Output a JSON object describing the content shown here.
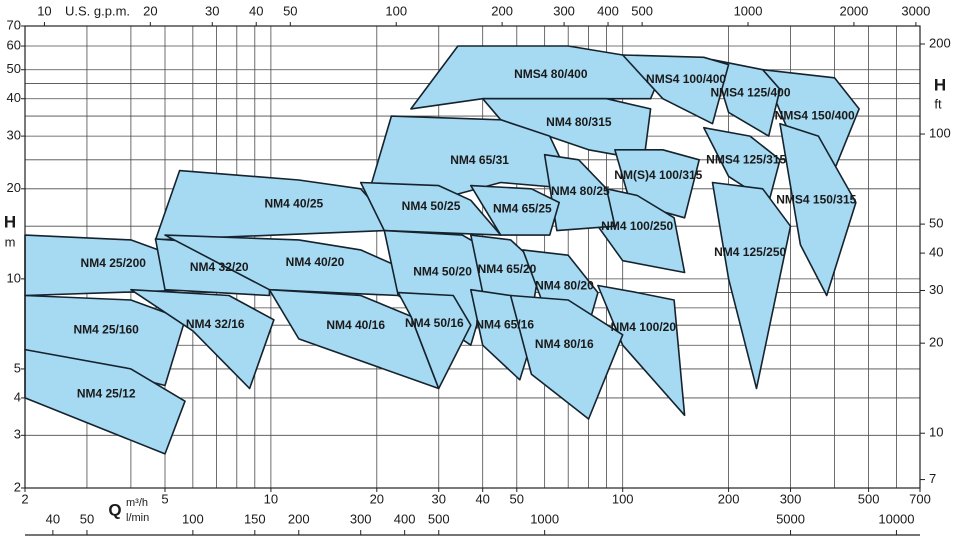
{
  "chart_data": {
    "type": "region-map",
    "x_label": "Q",
    "x_unit": "m³/h",
    "x2_unit": "l/min",
    "top_unit": "U.S. g.p.m.",
    "y_label": "H",
    "y_unit": "m",
    "y2_label": "H",
    "y2_unit": "ft",
    "log_x": true,
    "log_y": true,
    "xlim": [
      2,
      700
    ],
    "ylim": [
      2,
      70
    ],
    "xticks": [
      2,
      5,
      10,
      20,
      30,
      40,
      50,
      100,
      200,
      300,
      500,
      700
    ],
    "yticks": [
      2,
      3,
      4,
      5,
      10,
      20,
      30,
      40,
      50,
      60,
      70
    ],
    "toplim": [
      8.806,
      3082
    ],
    "topticks": [
      10,
      20,
      30,
      40,
      50,
      100,
      200,
      300,
      400,
      500,
      1000,
      2000,
      3000
    ],
    "x2lim": [
      33.33,
      11667
    ],
    "x2ticks": [
      40,
      50,
      100,
      150,
      200,
      300,
      400,
      500,
      1000,
      5000,
      10000
    ],
    "y2lim": [
      6.56,
      229.7
    ],
    "y2ticks": [
      7,
      10,
      20,
      30,
      40,
      50,
      100,
      200
    ],
    "xgrid": [
      2,
      3,
      4,
      5,
      6,
      7,
      8,
      9,
      10,
      20,
      30,
      40,
      50,
      60,
      70,
      80,
      90,
      100,
      200,
      300,
      400,
      500,
      600,
      700
    ],
    "ygrid": [
      2,
      3,
      4,
      5,
      6,
      7,
      8,
      9,
      10,
      15,
      20,
      25,
      30,
      35,
      40,
      45,
      50,
      60,
      70
    ],
    "region_color": "#a6d9f2",
    "edge_color": "#15232e",
    "regions": [
      {
        "name": "NMS4 80/400",
        "points": [
          [
            25,
            37
          ],
          [
            34,
            60
          ],
          [
            70,
            60
          ],
          [
            100,
            56
          ],
          [
            130,
            50
          ],
          [
            120,
            40
          ],
          [
            40,
            40
          ]
        ]
      },
      {
        "name": "NM4 80/315",
        "points": [
          [
            40,
            40
          ],
          [
            90,
            40
          ],
          [
            120,
            37
          ],
          [
            115,
            25
          ],
          [
            80,
            27
          ],
          [
            45,
            34
          ]
        ]
      },
      {
        "name": "NM4 65/31",
        "points": [
          [
            18,
            15.7
          ],
          [
            22,
            35
          ],
          [
            45,
            34
          ],
          [
            62,
            30
          ],
          [
            73,
            20
          ],
          [
            45,
            21
          ]
        ]
      },
      {
        "name": "NMS4 150/400",
        "points": [
          [
            250,
            50
          ],
          [
            400,
            47
          ],
          [
            470,
            37
          ],
          [
            380,
            20
          ],
          [
            300,
            30
          ]
        ]
      },
      {
        "name": "NMS4 125/400",
        "points": [
          [
            180,
            54
          ],
          [
            250,
            50
          ],
          [
            280,
            43
          ],
          [
            260,
            30
          ],
          [
            200,
            36
          ]
        ]
      },
      {
        "name": "NMS4 100/400",
        "points": [
          [
            100,
            56
          ],
          [
            170,
            55
          ],
          [
            200,
            52
          ],
          [
            180,
            33
          ],
          [
            130,
            40
          ]
        ]
      },
      {
        "name": "NMS4 150/315",
        "points": [
          [
            280,
            33
          ],
          [
            360,
            30
          ],
          [
            460,
            18
          ],
          [
            380,
            8.8
          ],
          [
            320,
            13
          ]
        ]
      },
      {
        "name": "NMS4 125/315",
        "points": [
          [
            170,
            32
          ],
          [
            230,
            30
          ],
          [
            280,
            25
          ],
          [
            260,
            18
          ],
          [
            200,
            22
          ]
        ]
      },
      {
        "name": "NM4 125/250",
        "points": [
          [
            180,
            21
          ],
          [
            250,
            20
          ],
          [
            300,
            15
          ],
          [
            240,
            4.3
          ],
          [
            200,
            10
          ]
        ]
      },
      {
        "name": "NM(S)4 100/315",
        "points": [
          [
            95,
            27
          ],
          [
            130,
            27
          ],
          [
            165,
            25
          ],
          [
            150,
            16
          ],
          [
            105,
            18
          ]
        ]
      },
      {
        "name": "NM4 100/250",
        "points": [
          [
            90,
            20
          ],
          [
            110,
            19
          ],
          [
            140,
            16
          ],
          [
            150,
            10.5
          ],
          [
            100,
            11.5
          ],
          [
            85,
            15
          ]
        ]
      },
      {
        "name": "NM4 100/20",
        "points": [
          [
            85,
            9.5
          ],
          [
            110,
            9
          ],
          [
            140,
            8.5
          ],
          [
            150,
            3.5
          ],
          [
            100,
            6
          ]
        ]
      },
      {
        "name": "NM4 80/25",
        "points": [
          [
            60,
            26
          ],
          [
            75,
            25
          ],
          [
            90,
            20
          ],
          [
            95,
            15
          ],
          [
            65,
            14.5
          ]
        ]
      },
      {
        "name": "NM4 40/25",
        "points": [
          [
            4.7,
            13.5
          ],
          [
            5.5,
            23
          ],
          [
            12,
            21.4
          ],
          [
            18,
            20
          ],
          [
            21,
            16.3
          ],
          [
            21,
            14.5
          ]
        ]
      },
      {
        "name": "NM4 50/25",
        "points": [
          [
            18,
            21
          ],
          [
            30,
            20.5
          ],
          [
            37,
            18.3
          ],
          [
            45,
            14
          ],
          [
            21,
            14.5
          ]
        ]
      },
      {
        "name": "NM4 65/25",
        "points": [
          [
            37,
            20.5
          ],
          [
            55,
            20
          ],
          [
            66,
            18
          ],
          [
            62,
            14
          ],
          [
            45,
            14
          ]
        ]
      },
      {
        "name": "NM4 25/200",
        "points": [
          [
            2,
            14
          ],
          [
            4,
            13.5
          ],
          [
            5.7,
            11.6
          ],
          [
            6.3,
            9.2
          ],
          [
            2,
            8.8
          ]
        ]
      },
      {
        "name": "NM4 32/20",
        "points": [
          [
            4.7,
            13.6
          ],
          [
            8,
            13
          ],
          [
            9.9,
            10.7
          ],
          [
            9.9,
            8.8
          ],
          [
            5,
            9.2
          ]
        ]
      },
      {
        "name": "NM4 40/20",
        "points": [
          [
            5,
            14
          ],
          [
            12,
            13.5
          ],
          [
            18,
            12.5
          ],
          [
            23,
            11
          ],
          [
            23,
            8.8
          ],
          [
            9.9,
            9.2
          ]
        ]
      },
      {
        "name": "NM4 50/20",
        "points": [
          [
            21,
            14.5
          ],
          [
            35,
            14
          ],
          [
            44,
            12
          ],
          [
            37,
            6
          ],
          [
            23,
            8.8
          ]
        ]
      },
      {
        "name": "NM4 65/20",
        "points": [
          [
            37,
            14
          ],
          [
            48,
            13.5
          ],
          [
            58,
            11
          ],
          [
            55,
            7.5
          ],
          [
            40,
            9
          ]
        ]
      },
      {
        "name": "NM4 80/20",
        "points": [
          [
            52,
            12.5
          ],
          [
            70,
            12
          ],
          [
            85,
            9
          ],
          [
            80,
            7
          ],
          [
            60,
            8
          ]
        ]
      },
      {
        "name": "NM4 25/160",
        "points": [
          [
            2,
            8.8
          ],
          [
            4,
            8.5
          ],
          [
            5.7,
            7.3
          ],
          [
            5,
            4.4
          ],
          [
            2,
            5.8
          ]
        ]
      },
      {
        "name": "NM4 32/16",
        "points": [
          [
            4,
            9.2
          ],
          [
            7.6,
            8.8
          ],
          [
            10.2,
            7.3
          ],
          [
            8.7,
            4.3
          ],
          [
            6,
            6.7
          ]
        ]
      },
      {
        "name": "NM4 40/16",
        "points": [
          [
            9.9,
            9.2
          ],
          [
            18,
            8.8
          ],
          [
            25,
            7.5
          ],
          [
            30,
            4.3
          ],
          [
            12,
            6.3
          ]
        ]
      },
      {
        "name": "NM4 50/16",
        "points": [
          [
            23,
            9
          ],
          [
            33,
            8.8
          ],
          [
            37,
            7
          ],
          [
            30,
            4.3
          ],
          [
            25,
            7.5
          ]
        ]
      },
      {
        "name": "NM4 65/16",
        "points": [
          [
            37,
            9.2
          ],
          [
            48,
            8.8
          ],
          [
            58,
            7.5
          ],
          [
            51,
            4.6
          ],
          [
            40,
            6
          ]
        ]
      },
      {
        "name": "NM4 80/16",
        "points": [
          [
            48,
            8.8
          ],
          [
            70,
            8.5
          ],
          [
            100,
            6.5
          ],
          [
            80,
            3.4
          ],
          [
            55,
            4.8
          ]
        ]
      },
      {
        "name": "NM4 25/12",
        "points": [
          [
            2,
            5.8
          ],
          [
            4,
            5
          ],
          [
            5.7,
            3.9
          ],
          [
            5,
            2.6
          ],
          [
            2,
            4
          ]
        ]
      }
    ]
  }
}
